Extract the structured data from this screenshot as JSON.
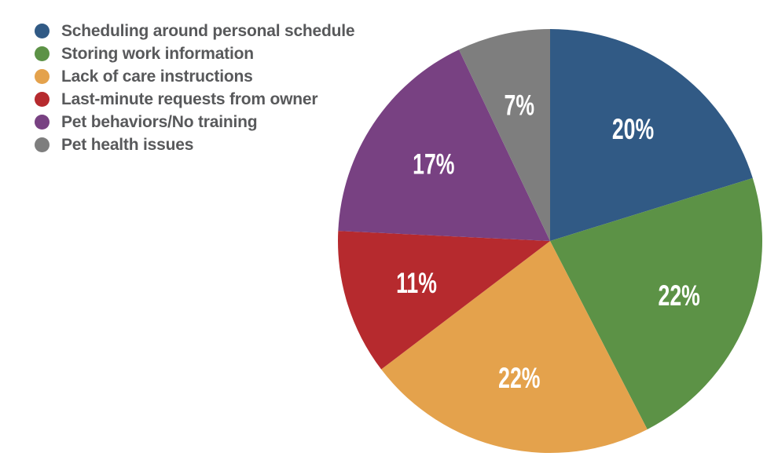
{
  "chart_data": {
    "type": "pie",
    "title": "",
    "categories": [
      "Scheduling around personal schedule",
      "Storing work information",
      "Lack of care instructions",
      "Last-minute requests from owner",
      "Pet behaviors/No training",
      "Pet health issues"
    ],
    "values": [
      20,
      22,
      22,
      11,
      17,
      7
    ],
    "slice_labels": [
      "20%",
      "22%",
      "22%",
      "11%",
      "17%",
      "7%"
    ],
    "colors": [
      "#315A85",
      "#5C9246",
      "#E4A24C",
      "#B62A2E",
      "#784182",
      "#7E7E7E"
    ],
    "start_angle": "12-oclock",
    "direction": "clockwise",
    "legend_position": "top-left",
    "slice_label_color": "#FFFFFF",
    "legend_text_color": "#58595B",
    "background_color": "#FFFFFF",
    "legend_swatch_shape": "circle"
  }
}
